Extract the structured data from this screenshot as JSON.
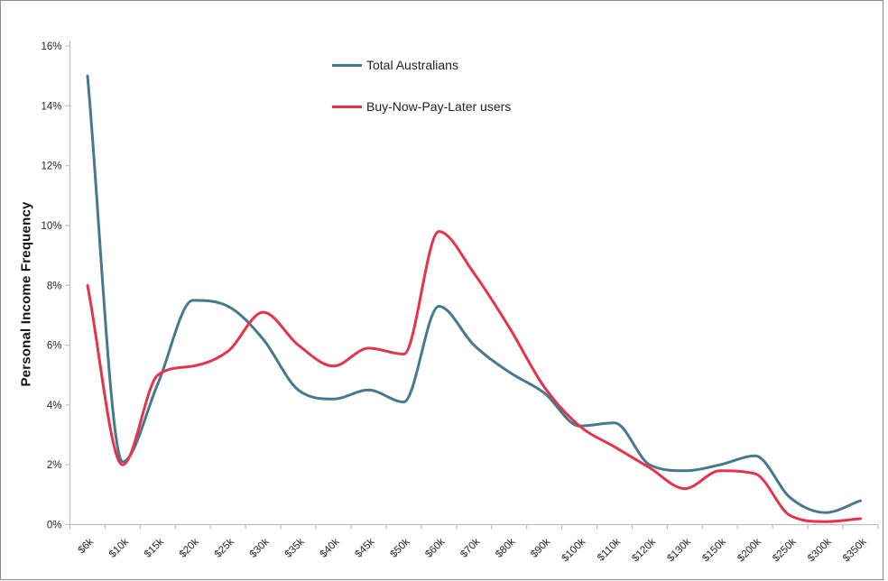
{
  "chart_data": {
    "type": "line",
    "title": "",
    "ylabel": "Personal Income Frequency",
    "xlabel": "",
    "categories": [
      "$6k",
      "$10k",
      "$15k",
      "$20k",
      "$25k",
      "$30k",
      "$35k",
      "$40k",
      "$45k",
      "$50k",
      "$60k",
      "$70k",
      "$80k",
      "$90k",
      "$100k",
      "$110k",
      "$120k",
      "$130k",
      "$150k",
      "$200k",
      "$250k",
      "$300k",
      "$350k"
    ],
    "series": [
      {
        "name": "Total Australians",
        "color": "#46788E",
        "values": [
          15.0,
          2.1,
          4.7,
          7.5,
          7.3,
          6.2,
          4.5,
          4.2,
          4.5,
          4.1,
          7.3,
          6.0,
          5.1,
          4.4,
          3.3,
          3.4,
          2.0,
          1.8,
          2.0,
          2.3,
          0.9,
          0.4,
          0.8
        ]
      },
      {
        "name": "Buy-Now-Pay-Later users",
        "color": "#E6324B",
        "values": [
          8.0,
          2.0,
          5.0,
          5.3,
          5.8,
          7.1,
          6.0,
          5.3,
          5.9,
          5.7,
          9.8,
          8.4,
          6.6,
          4.6,
          3.3,
          2.6,
          1.9,
          1.2,
          1.8,
          1.7,
          0.3,
          0.1,
          0.2
        ]
      }
    ],
    "y_axis": {
      "min": 0,
      "max": 16,
      "tick_step": 2,
      "tick_labels": [
        "0%",
        "2%",
        "4%",
        "6%",
        "8%",
        "10%",
        "12%",
        "14%",
        "16%"
      ]
    },
    "grid": "off",
    "legend_position": "top-center",
    "line_style": "smoothed",
    "axis_color": "#BFBFBF",
    "text_color": "#262626"
  }
}
